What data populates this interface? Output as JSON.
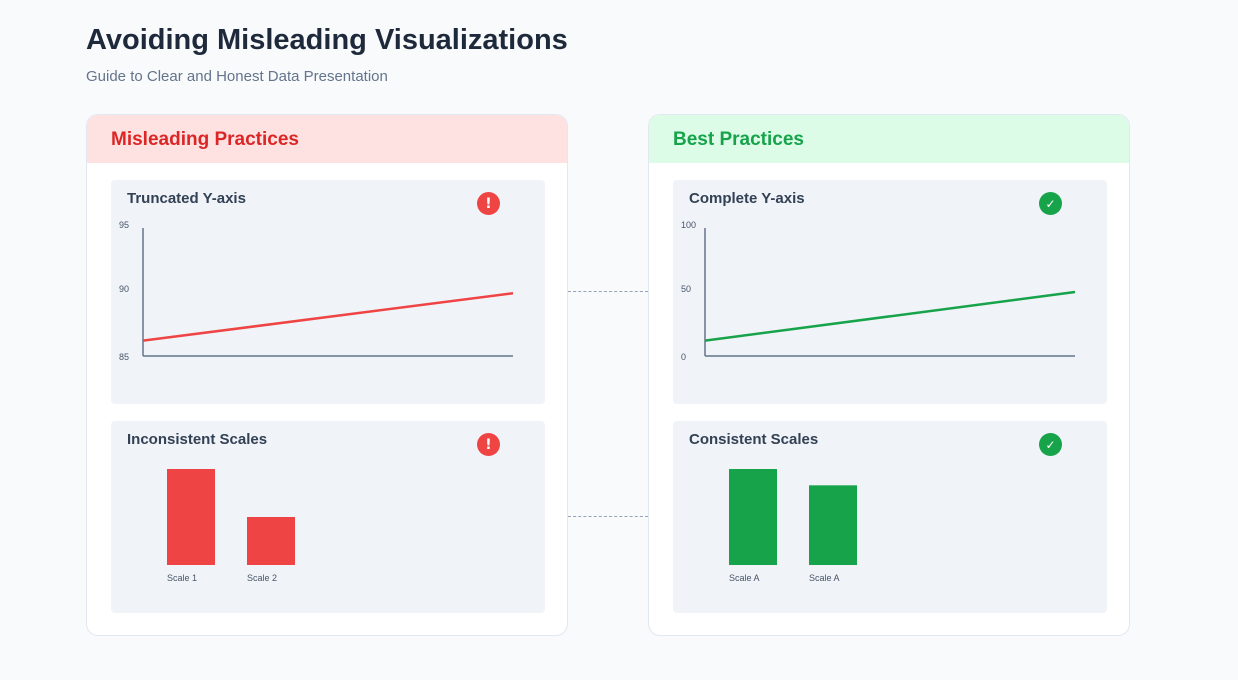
{
  "header": {
    "title": "Avoiding Misleading Visualizations",
    "subtitle": "Guide to Clear and Honest Data Presentation"
  },
  "colors": {
    "bad": "#ef4444",
    "good": "#16a34a",
    "axis": "#64748b"
  },
  "panels": {
    "misleading": {
      "heading": "Misleading Practices",
      "badge_icon": "exclamation-icon",
      "cards": [
        {
          "title": "Truncated Y-axis",
          "badge": "!",
          "chart": {
            "type": "line",
            "ylim": [
              85,
              95
            ],
            "y_ticks": [
              "95",
              "90",
              "85"
            ],
            "y_start": 86.2,
            "y_end": 89.9
          }
        },
        {
          "title": "Inconsistent Scales",
          "badge": "!",
          "chart": {
            "type": "bar",
            "categories": [
              "Scale 1",
              "Scale 2"
            ],
            "values": [
              1.0,
              0.5
            ]
          }
        }
      ]
    },
    "best": {
      "heading": "Best Practices",
      "badge_icon": "checkmark-icon",
      "cards": [
        {
          "title": "Complete Y-axis",
          "badge": "✓",
          "chart": {
            "type": "line",
            "ylim": [
              0,
              100
            ],
            "y_ticks": [
              "100",
              "50",
              "0"
            ],
            "y_start": 12,
            "y_end": 50
          }
        },
        {
          "title": "Consistent Scales",
          "badge": "✓",
          "chart": {
            "type": "bar",
            "categories": [
              "Scale A",
              "Scale A"
            ],
            "values": [
              1.0,
              0.83
            ]
          }
        }
      ]
    }
  }
}
